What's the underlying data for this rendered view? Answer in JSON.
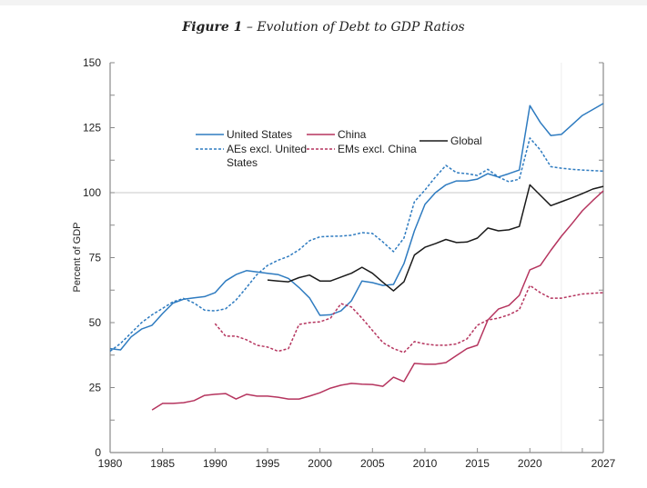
{
  "figure": {
    "label": "Figure 1",
    "separator": "–",
    "caption": "Evolution of Debt to GDP Ratios"
  },
  "chart_data": {
    "type": "line",
    "title": "Figure 1 – Evolution of Debt to GDP Ratios",
    "xlabel": "",
    "ylabel": "Percent of GDP",
    "xlim": [
      1980,
      2027
    ],
    "ylim": [
      0,
      150
    ],
    "x_ticks": [
      1980,
      1985,
      1990,
      1995,
      2000,
      2005,
      2010,
      2015,
      2020,
      2025,
      2027
    ],
    "x_tick_labels": [
      "1980",
      "1985",
      "1990",
      "1995",
      "2000",
      "2005",
      "2010",
      "2015",
      "2020",
      "",
      "2027"
    ],
    "y_ticks": [
      0,
      25,
      50,
      75,
      100,
      125,
      150
    ],
    "y_tick_labels": [
      "0",
      "25",
      "50",
      "75",
      "100",
      "125",
      "150"
    ],
    "reference_line_y": 100,
    "projection_start_x": 2023,
    "legend_placement": "top-center",
    "series": [
      {
        "name": "United States",
        "color": "#2E7BC0",
        "style": "solid",
        "x": [
          1980,
          1981,
          1982,
          1983,
          1984,
          1985,
          1986,
          1987,
          1988,
          1989,
          1990,
          1991,
          1992,
          1993,
          1994,
          1995,
          1996,
          1997,
          1998,
          1999,
          2000,
          2001,
          2002,
          2003,
          2004,
          2005,
          2006,
          2007,
          2008,
          2009,
          2010,
          2011,
          2012,
          2013,
          2014,
          2015,
          2016,
          2017,
          2018,
          2019,
          2020,
          2021,
          2022,
          2023,
          2024,
          2025,
          2026,
          2027
        ],
        "values": [
          40,
          39.5,
          44.5,
          47.5,
          49,
          53.5,
          57.5,
          59,
          59.5,
          60,
          61.5,
          66,
          68.5,
          70,
          69.5,
          69,
          68.5,
          67,
          63.5,
          59.5,
          52.8,
          53,
          54.5,
          58.4,
          66,
          65.4,
          64.3,
          64.7,
          72.7,
          85.3,
          95.5,
          100,
          103,
          104.5,
          104.5,
          105.2,
          107.3,
          106,
          107.3,
          108.7,
          133.5,
          127,
          122,
          122.4,
          126,
          129.7,
          132,
          134.3
        ]
      },
      {
        "name": "AEs excl. United States",
        "color": "#2E7BC0",
        "style": "dashed",
        "x": [
          1980,
          1981,
          1982,
          1983,
          1984,
          1985,
          1986,
          1987,
          1988,
          1989,
          1990,
          1991,
          1992,
          1993,
          1994,
          1995,
          1996,
          1997,
          1998,
          1999,
          2000,
          2001,
          2002,
          2003,
          2004,
          2005,
          2006,
          2007,
          2008,
          2009,
          2010,
          2011,
          2012,
          2013,
          2014,
          2015,
          2016,
          2017,
          2018,
          2019,
          2020,
          2021,
          2022,
          2023,
          2024,
          2025,
          2026,
          2027
        ],
        "values": [
          39,
          42,
          46,
          50,
          53,
          55.5,
          58,
          59.3,
          57.5,
          54.8,
          54.5,
          55.3,
          58.7,
          63.5,
          68.5,
          72,
          74,
          75.5,
          78,
          81.5,
          83,
          83.2,
          83.3,
          83.6,
          84.6,
          84.3,
          81,
          77.3,
          82.5,
          96.5,
          101,
          106,
          110.5,
          107.7,
          107.3,
          106.6,
          109,
          106,
          104.2,
          105.2,
          121,
          116.4,
          110,
          109.4,
          109,
          108.7,
          108.5,
          108.3
        ]
      },
      {
        "name": "China",
        "color": "#B5345E",
        "style": "solid",
        "x": [
          1984,
          1985,
          1986,
          1987,
          1988,
          1989,
          1990,
          1991,
          1992,
          1993,
          1994,
          1995,
          1996,
          1997,
          1998,
          1999,
          2000,
          2001,
          2002,
          2003,
          2004,
          2005,
          2006,
          2007,
          2008,
          2009,
          2010,
          2011,
          2012,
          2013,
          2014,
          2015,
          2016,
          2017,
          2018,
          2019,
          2020,
          2021,
          2022,
          2023,
          2024,
          2025,
          2026,
          2027
        ],
        "values": [
          16.4,
          18.9,
          18.9,
          19.2,
          20,
          22,
          22.4,
          22.7,
          20.6,
          22.4,
          21.7,
          21.7,
          21.3,
          20.6,
          20.6,
          21.7,
          23,
          24.8,
          25.9,
          26.6,
          26.3,
          26.2,
          25.5,
          29,
          27.3,
          34.3,
          34,
          34,
          34.6,
          37.3,
          40,
          41.3,
          51,
          55.2,
          56.6,
          60.5,
          70.3,
          72,
          77.8,
          83.2,
          88,
          93,
          97,
          100.7
        ]
      },
      {
        "name": "EMs excl. China",
        "color": "#B5345E",
        "style": "dashed",
        "x": [
          1990,
          1991,
          1992,
          1993,
          1994,
          1995,
          1996,
          1997,
          1998,
          1999,
          2000,
          2001,
          2002,
          2003,
          2004,
          2005,
          2006,
          2007,
          2008,
          2009,
          2010,
          2011,
          2012,
          2013,
          2014,
          2015,
          2016,
          2017,
          2018,
          2019,
          2020,
          2021,
          2022,
          2023,
          2024,
          2025,
          2026,
          2027
        ],
        "values": [
          49.6,
          44.8,
          44.8,
          43.4,
          41.3,
          40.6,
          39,
          40,
          49.3,
          50,
          50.3,
          51.7,
          57.3,
          56,
          51.7,
          47,
          42.3,
          40,
          38.5,
          42.7,
          41.8,
          41.3,
          41.3,
          41.8,
          43.7,
          49,
          51,
          51.7,
          53,
          55,
          64.3,
          61.5,
          59.4,
          59.4,
          60.2,
          61,
          61.3,
          61.5
        ]
      },
      {
        "name": "Global",
        "color": "#1a1a1a",
        "style": "solid",
        "x": [
          1995,
          1996,
          1997,
          1998,
          1999,
          2000,
          2001,
          2002,
          2003,
          2004,
          2005,
          2006,
          2007,
          2008,
          2009,
          2010,
          2011,
          2012,
          2013,
          2014,
          2015,
          2016,
          2017,
          2018,
          2019,
          2020,
          2021,
          2022,
          2023,
          2024,
          2025,
          2026,
          2027
        ],
        "values": [
          66.4,
          66,
          65.7,
          67.3,
          68.3,
          66,
          66,
          67.5,
          69,
          71.3,
          69,
          65.5,
          62.2,
          65.7,
          76,
          79,
          80.4,
          82,
          80.8,
          81,
          82.5,
          86.4,
          85.3,
          85.7,
          87,
          103,
          99,
          95,
          96.5,
          98,
          99.6,
          101.4,
          102.4
        ]
      }
    ],
    "legend": [
      {
        "label_lines": [
          "United States"
        ],
        "series": 0
      },
      {
        "label_lines": [
          "AEs excl. United",
          "States"
        ],
        "series": 1
      },
      {
        "label_lines": [
          "China"
        ],
        "series": 2
      },
      {
        "label_lines": [
          "EMs excl. China"
        ],
        "series": 3
      },
      {
        "label_lines": [
          "Global"
        ],
        "series": 4
      }
    ]
  }
}
